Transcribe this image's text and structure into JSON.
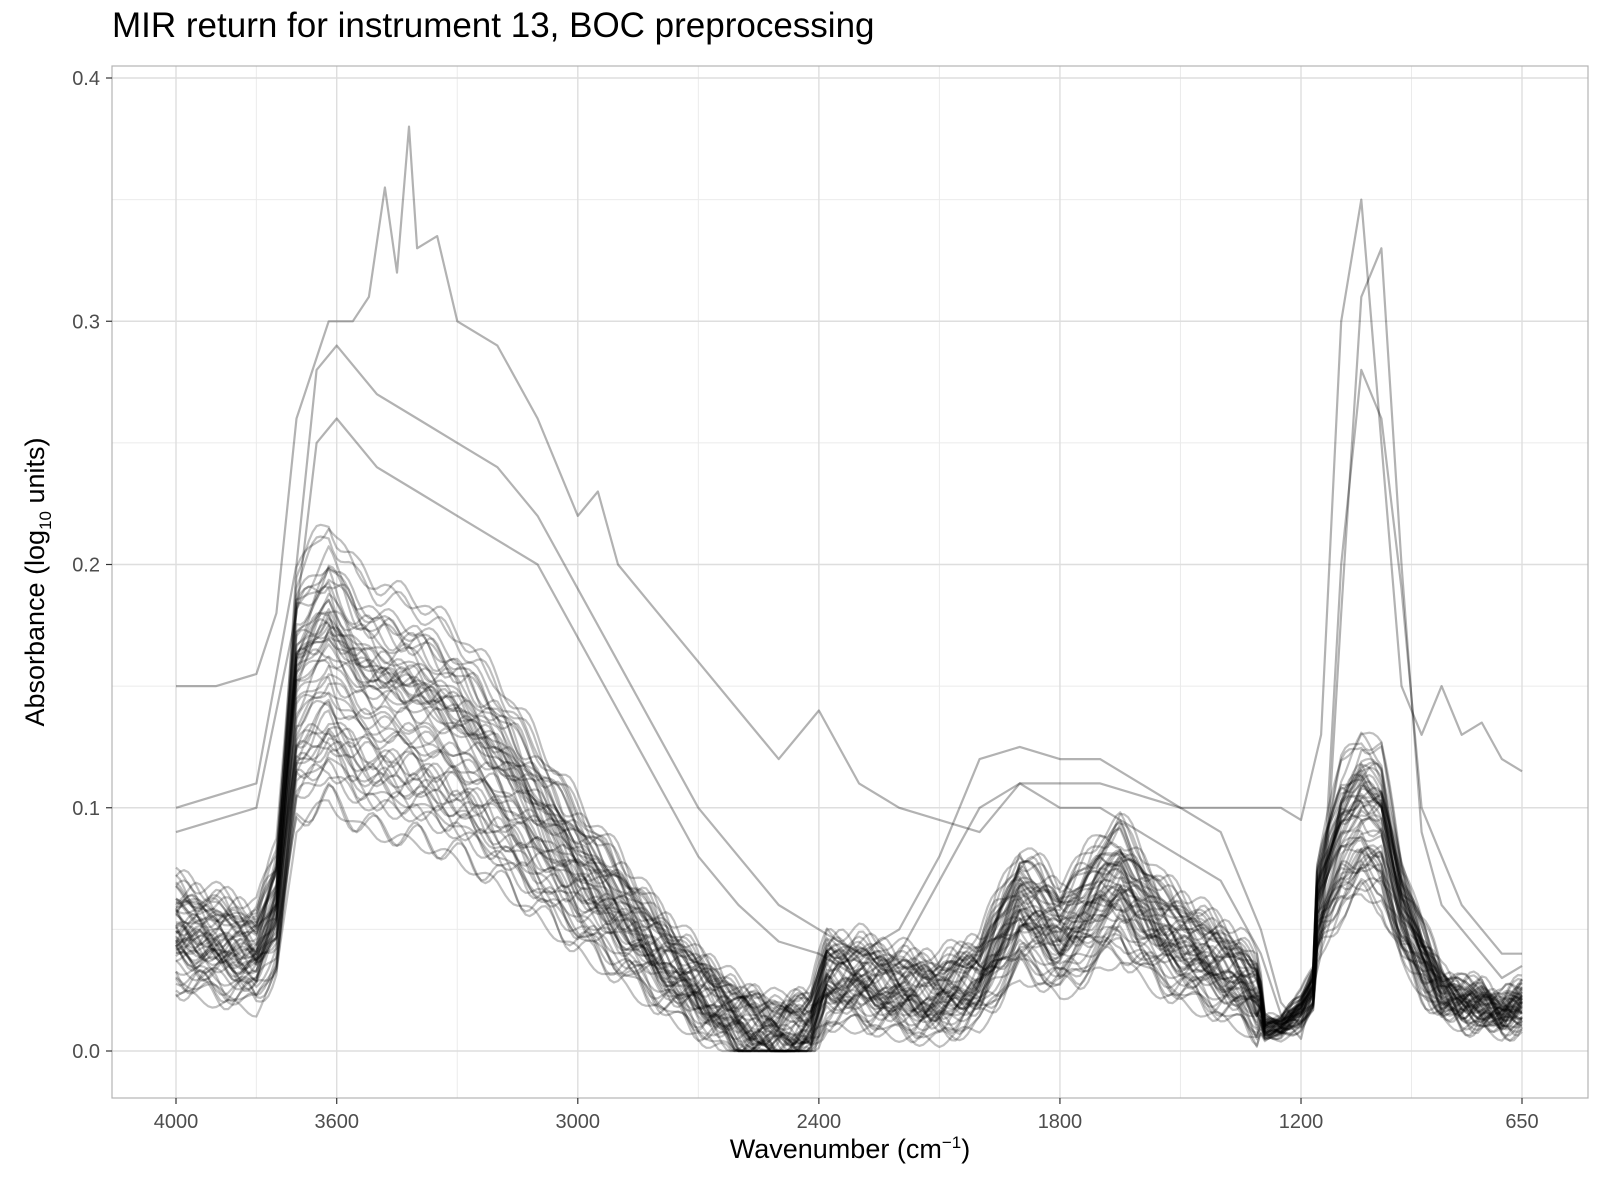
{
  "chart_data": {
    "type": "line",
    "title": "MIR return for instrument 13, BOC preprocessing",
    "xlabel": "Wavenumber",
    "xlabel_unit_base": "cm",
    "xlabel_unit_exp": "−1",
    "ylabel": "Absorbance",
    "ylabel_unit_base": "log",
    "ylabel_unit_sub": "10",
    "ylabel_unit_rest": " units",
    "x_reversed": true,
    "xlim": [
      4000,
      650
    ],
    "ylim": [
      0.0,
      0.4
    ],
    "x_ticks": [
      4000,
      3600,
      3000,
      2400,
      1800,
      1200,
      650
    ],
    "x_tick_labels": [
      "4000",
      "3600",
      "3000",
      "2400",
      "1800",
      "1200",
      "650"
    ],
    "y_ticks": [
      0.0,
      0.1,
      0.2,
      0.3,
      0.4
    ],
    "y_tick_labels": [
      "0.0",
      "0.1",
      "0.2",
      "0.3",
      "0.4"
    ],
    "grid": true,
    "legend": "none",
    "line_color": "#000000",
    "line_opacity": 0.25,
    "series_count": 60,
    "profile_x": [
      4000,
      3900,
      3800,
      3750,
      3700,
      3650,
      3620,
      3600,
      3550,
      3500,
      3400,
      3300,
      3200,
      3100,
      3000,
      2900,
      2800,
      2700,
      2600,
      2500,
      2420,
      2380,
      2300,
      2200,
      2100,
      2000,
      1900,
      1850,
      1800,
      1750,
      1700,
      1650,
      1600,
      1550,
      1500,
      1450,
      1400,
      1350,
      1300,
      1250,
      1200,
      1150,
      1100,
      1050,
      1000,
      950,
      900,
      850,
      800,
      750,
      700,
      650
    ],
    "profile_y": [
      0.05,
      0.045,
      0.04,
      0.06,
      0.15,
      0.16,
      0.165,
      0.16,
      0.15,
      0.145,
      0.14,
      0.13,
      0.115,
      0.095,
      0.075,
      0.058,
      0.04,
      0.025,
      0.012,
      0.006,
      0.01,
      0.03,
      0.03,
      0.025,
      0.022,
      0.03,
      0.06,
      0.055,
      0.048,
      0.055,
      0.065,
      0.07,
      0.06,
      0.05,
      0.045,
      0.04,
      0.035,
      0.03,
      0.02,
      0.02,
      0.035,
      0.065,
      0.09,
      0.1,
      0.095,
      0.06,
      0.04,
      0.025,
      0.02,
      0.02,
      0.015,
      0.02
    ],
    "highlight_series": [
      {
        "x": [
          4000,
          3900,
          3800,
          3750,
          3700,
          3680,
          3660,
          3640,
          3620,
          3600,
          3560,
          3520,
          3480,
          3450,
          3420,
          3400,
          3350,
          3300,
          3200,
          3100,
          3000,
          2950,
          2900,
          2800,
          2700,
          2600,
          2500,
          2400,
          2300,
          2200,
          2100,
          2000,
          1900,
          1800,
          1700,
          1600,
          1500,
          1400,
          1300,
          1250,
          1200,
          1150,
          1100,
          1050,
          1000,
          950,
          900,
          850,
          800,
          750,
          700,
          650
        ],
        "y": [
          0.15,
          0.15,
          0.155,
          0.18,
          0.26,
          0.27,
          0.28,
          0.29,
          0.3,
          0.3,
          0.3,
          0.31,
          0.355,
          0.32,
          0.38,
          0.33,
          0.335,
          0.3,
          0.29,
          0.26,
          0.22,
          0.23,
          0.2,
          0.18,
          0.16,
          0.14,
          0.12,
          0.14,
          0.11,
          0.1,
          0.095,
          0.09,
          0.11,
          0.11,
          0.11,
          0.105,
          0.1,
          0.1,
          0.1,
          0.1,
          0.095,
          0.13,
          0.3,
          0.35,
          0.25,
          0.15,
          0.13,
          0.15,
          0.13,
          0.135,
          0.12,
          0.115
        ]
      },
      {
        "x": [
          4000,
          3800,
          3700,
          3650,
          3600,
          3500,
          3400,
          3300,
          3200,
          3100,
          3000,
          2900,
          2800,
          2700,
          2600,
          2500,
          2400,
          2300,
          2200,
          2100,
          2000,
          1900,
          1800,
          1700,
          1600,
          1500,
          1400,
          1300,
          1250,
          1200,
          1150,
          1100,
          1050,
          1000,
          950,
          900,
          850,
          800,
          750,
          700,
          650
        ],
        "y": [
          0.1,
          0.11,
          0.2,
          0.28,
          0.29,
          0.27,
          0.26,
          0.25,
          0.24,
          0.22,
          0.19,
          0.16,
          0.13,
          0.1,
          0.08,
          0.06,
          0.05,
          0.04,
          0.05,
          0.08,
          0.12,
          0.125,
          0.12,
          0.12,
          0.11,
          0.1,
          0.09,
          0.05,
          0.02,
          0.01,
          0.05,
          0.2,
          0.28,
          0.26,
          0.19,
          0.1,
          0.08,
          0.06,
          0.05,
          0.04,
          0.04
        ]
      },
      {
        "x": [
          4000,
          3800,
          3700,
          3650,
          3600,
          3500,
          3400,
          3300,
          3200,
          3100,
          3000,
          2900,
          2800,
          2700,
          2600,
          2500,
          2400,
          2300,
          2200,
          2100,
          2000,
          1900,
          1800,
          1700,
          1600,
          1500,
          1400,
          1300,
          1250,
          1200,
          1150,
          1100,
          1050,
          1000,
          950,
          900,
          850,
          800,
          750,
          700,
          650
        ],
        "y": [
          0.09,
          0.1,
          0.18,
          0.25,
          0.26,
          0.24,
          0.23,
          0.22,
          0.21,
          0.2,
          0.17,
          0.14,
          0.11,
          0.08,
          0.06,
          0.045,
          0.04,
          0.03,
          0.04,
          0.07,
          0.1,
          0.11,
          0.1,
          0.1,
          0.09,
          0.08,
          0.07,
          0.04,
          0.015,
          0.005,
          0.04,
          0.18,
          0.31,
          0.33,
          0.2,
          0.09,
          0.06,
          0.05,
          0.04,
          0.03,
          0.035
        ]
      }
    ]
  }
}
